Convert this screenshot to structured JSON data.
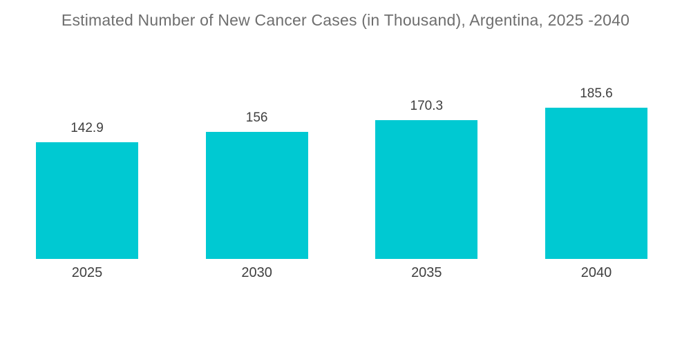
{
  "chart_data": {
    "type": "bar",
    "title": "Estimated Number of New Cancer Cases (in Thousand), Argentina, 2025 -2040",
    "categories": [
      "2025",
      "2030",
      "2035",
      "2040"
    ],
    "values": [
      142.9,
      156,
      170.3,
      185.6
    ],
    "value_labels": [
      "142.9",
      "156",
      "170.3",
      "185.6"
    ],
    "xlabel": "",
    "ylabel": "",
    "ylim": [
      0,
      220
    ],
    "grid": false,
    "legend": "none",
    "axes_visible": false,
    "bar_color": "#00C9D2",
    "value_label_color": "#3F3F3F",
    "category_label_color": "#3F3F3F",
    "title_color": "#6E6E6E",
    "background_color": "#FFFFFF"
  }
}
